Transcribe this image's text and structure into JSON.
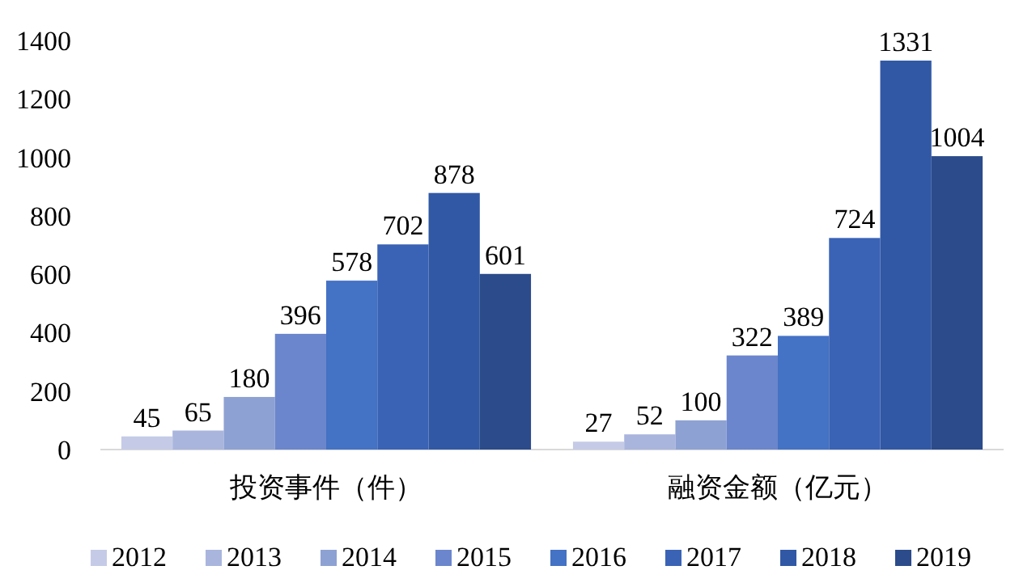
{
  "chart_data": {
    "type": "bar",
    "categories": [
      "投资事件（件）",
      "融资金额（亿元）"
    ],
    "series": [
      {
        "name": "2012",
        "color": "#c5cbe6",
        "values": [
          45,
          27
        ]
      },
      {
        "name": "2013",
        "color": "#a9b5dd",
        "values": [
          65,
          52
        ]
      },
      {
        "name": "2014",
        "color": "#8ea1d3",
        "values": [
          180,
          100
        ]
      },
      {
        "name": "2015",
        "color": "#6b86cc",
        "values": [
          396,
          322
        ]
      },
      {
        "name": "2016",
        "color": "#4472c4",
        "values": [
          578,
          389
        ]
      },
      {
        "name": "2017",
        "color": "#3a63b5",
        "values": [
          702,
          724
        ]
      },
      {
        "name": "2018",
        "color": "#3158a5",
        "values": [
          878,
          1331
        ]
      },
      {
        "name": "2019",
        "color": "#2b4b8a",
        "values": [
          601,
          1004
        ]
      }
    ],
    "ylim": [
      0,
      1400
    ],
    "yticks": [
      0,
      200,
      400,
      600,
      800,
      1000,
      1200,
      1400
    ],
    "data_labels": true,
    "legend": "bottom",
    "grid": false
  }
}
